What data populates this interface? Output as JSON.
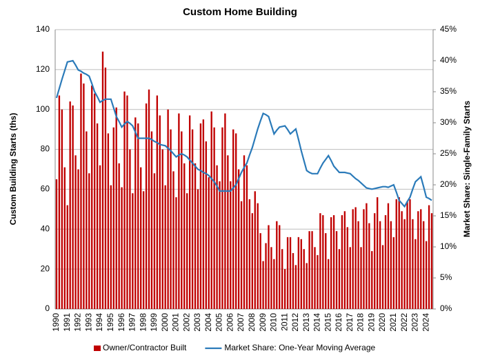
{
  "chart_data": {
    "type": "bar",
    "title": "Custom Home Building",
    "y_label": "Custom Building Starts (ths)",
    "y2_label": "Market Share: Single-Family Starts",
    "categories": [
      "1990",
      null,
      null,
      null,
      "1991",
      null,
      null,
      null,
      "1992",
      null,
      null,
      null,
      "1993",
      null,
      null,
      null,
      "1994",
      null,
      null,
      null,
      "1995",
      null,
      null,
      null,
      "1996",
      null,
      null,
      null,
      "1997",
      null,
      null,
      null,
      "1998",
      null,
      null,
      null,
      "1999",
      null,
      null,
      null,
      "2000",
      null,
      null,
      null,
      "2001",
      null,
      null,
      null,
      "2002",
      null,
      null,
      null,
      "2003",
      null,
      null,
      null,
      "2004",
      null,
      null,
      null,
      "2005",
      null,
      null,
      null,
      "2006",
      null,
      null,
      null,
      "2007",
      null,
      null,
      null,
      "2008",
      null,
      null,
      null,
      "2009",
      null,
      null,
      null,
      "2010",
      null,
      null,
      null,
      "2011",
      null,
      null,
      null,
      "2012",
      null,
      null,
      null,
      "2013",
      null,
      null,
      null,
      "2014",
      null,
      null,
      null,
      "2015",
      null,
      null,
      null,
      "2016",
      null,
      null,
      null,
      "2017",
      null,
      null,
      null,
      "2018",
      null,
      null,
      null,
      "2019",
      null,
      null,
      null,
      "2020",
      null,
      null,
      null,
      "2021",
      null,
      null,
      null,
      "2022",
      null,
      null,
      null,
      "2023",
      null,
      null,
      null,
      "2024",
      null,
      null
    ],
    "series": [
      {
        "name": "Owner/Contractor Built",
        "color": "#c00000",
        "type": "bar",
        "values": [
          65,
          107,
          100,
          71,
          52,
          104,
          102,
          77,
          70,
          118,
          113,
          89,
          68,
          112,
          108,
          93,
          72,
          129,
          121,
          88,
          62,
          91,
          101,
          73,
          61,
          109,
          107,
          80,
          58,
          96,
          93,
          71,
          59,
          103,
          110,
          89,
          68,
          107,
          97,
          80,
          62,
          100,
          90,
          69,
          56,
          98,
          89,
          73,
          58,
          97,
          90,
          73,
          60,
          93,
          95,
          84,
          66,
          99,
          91,
          72,
          64,
          91,
          98,
          77,
          64,
          90,
          88,
          70,
          54,
          77,
          72,
          55,
          48,
          59,
          53,
          38,
          24,
          33,
          42,
          31,
          25,
          44,
          42,
          30,
          20,
          36,
          36,
          28,
          22,
          36,
          35,
          30,
          23,
          39,
          39,
          31,
          27,
          48,
          47,
          38,
          25,
          46,
          47,
          39,
          30,
          47,
          49,
          41,
          31,
          50,
          51,
          44,
          31,
          50,
          53,
          43,
          29,
          48,
          56,
          44,
          32,
          47,
          53,
          44,
          36,
          55,
          56,
          49,
          45,
          54,
          55,
          45,
          35,
          49,
          50,
          44,
          34,
          52,
          48
        ]
      },
      {
        "name": "Market Share: One-Year Moving Average",
        "color": "#2a7ab9",
        "type": "line",
        "axis": "y2",
        "values": [
          34,
          35.5,
          37,
          38.4,
          39.8,
          39.9,
          40,
          39.3,
          38.5,
          38.3,
          38,
          37.8,
          37.5,
          36.3,
          35,
          34.2,
          33.3,
          33.6,
          33.8,
          33.8,
          33.8,
          32.4,
          31,
          30.2,
          29.3,
          29.8,
          30.2,
          29.9,
          29.5,
          28.5,
          27.5,
          27.5,
          27.5,
          27.5,
          27.5,
          27.3,
          27,
          26.8,
          26.5,
          26.4,
          26.3,
          25.9,
          25.5,
          25,
          24.5,
          24.8,
          25,
          24.8,
          24.5,
          24,
          23.5,
          23,
          22.5,
          22.3,
          22,
          21.8,
          21.5,
          21,
          20.5,
          19.8,
          19,
          19,
          19,
          19,
          19,
          19.5,
          20,
          21,
          22,
          22.8,
          23.5,
          24.8,
          26,
          27.5,
          29,
          30.3,
          31.5,
          31.3,
          31,
          29.6,
          28.2,
          28.8,
          29.3,
          29.4,
          29.5,
          28.9,
          28.2,
          28.6,
          29,
          27.3,
          25.5,
          23.9,
          22.3,
          22,
          21.8,
          21.8,
          21.8,
          22.7,
          23.5,
          24.1,
          24.7,
          23.9,
          23,
          22.5,
          22,
          22,
          22,
          21.9,
          21.8,
          21.4,
          21,
          20.7,
          20.3,
          19.9,
          19.5,
          19.4,
          19.3,
          19.4,
          19.5,
          19.6,
          19.7,
          19.7,
          19.6,
          19.8,
          20,
          18.8,
          17.5,
          17,
          16.5,
          17.3,
          18,
          19.3,
          20.5,
          20.9,
          21.3,
          19.7,
          18,
          17.8,
          17.5
        ]
      }
    ],
    "ylim": [
      0,
      140
    ],
    "yticks": [
      0,
      20,
      40,
      60,
      80,
      100,
      120,
      140
    ],
    "y2lim": [
      0,
      45
    ],
    "y2ticks": [
      {
        "value": 0,
        "label": "0%"
      },
      {
        "value": 5,
        "label": "5%"
      },
      {
        "value": 10,
        "label": "10%"
      },
      {
        "value": 15,
        "label": "15%"
      },
      {
        "value": 20,
        "label": "20%"
      },
      {
        "value": 25,
        "label": "25%"
      },
      {
        "value": 30,
        "label": "30%"
      },
      {
        "value": 35,
        "label": "35%"
      },
      {
        "value": 40,
        "label": "40%"
      },
      {
        "value": 45,
        "label": "45%"
      }
    ],
    "grid": true,
    "legend": "bottom"
  }
}
